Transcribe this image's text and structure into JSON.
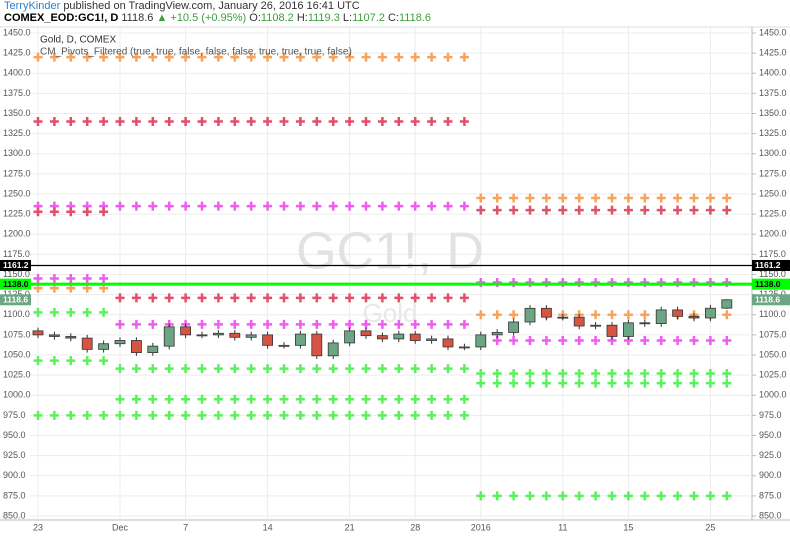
{
  "header": {
    "author": "TerryKinder",
    "published": "published on TradingView.com, January 26, 2016 16:41 UTC",
    "symbol": "COMEX_EOD:GC1!, D",
    "last": "1118.6",
    "change": "+10.5 (+0.95%)",
    "ohlc": [
      {
        "label": "O:",
        "value": "1108.2"
      },
      {
        "label": "H:",
        "value": "1119.3"
      },
      {
        "label": "L:",
        "value": "1107.2"
      },
      {
        "label": "C:",
        "value": "1118.6"
      }
    ]
  },
  "chart_data": {
    "type": "candlestick",
    "title": "Gold, D, COMEX",
    "subtitle": "CM_Pivots_Filtered (true, true, false, false, false, true, true, true, false)",
    "watermark": "GC1!, D",
    "watermark_subtitle": "Gold",
    "categories": [
      "23",
      null,
      null,
      null,
      null,
      "Dec",
      null,
      null,
      null,
      "7",
      null,
      null,
      null,
      null,
      "14",
      null,
      null,
      null,
      null,
      "21",
      null,
      null,
      null,
      "28",
      null,
      null,
      null,
      "2016",
      null,
      null,
      null,
      null,
      "11",
      null,
      null,
      null,
      "15",
      null,
      null,
      null,
      null,
      "25",
      null
    ],
    "open": [
      1080,
      1075,
      1073,
      1071,
      1057,
      1064,
      1068,
      1053,
      1061,
      1085,
      1075,
      1075,
      1077,
      1072,
      1075,
      1062,
      1062,
      1076,
      1049,
      1065,
      1080,
      1074,
      1070,
      1076,
      1068,
      1070,
      1060,
      1060,
      1075,
      1078,
      1091,
      1108,
      1097,
      1097,
      1086,
      1087,
      1073,
      1090,
      1089,
      1106,
      1098,
      1096,
      1108.2
    ],
    "high": [
      1084,
      1079,
      1077,
      1075,
      1068,
      1072,
      1072,
      1065,
      1089,
      1089,
      1079,
      1081,
      1081,
      1079,
      1079,
      1066,
      1080,
      1080,
      1069,
      1084,
      1084,
      1078,
      1080,
      1080,
      1074,
      1074,
      1064,
      1079,
      1082,
      1095,
      1112,
      1112,
      1101,
      1101,
      1091,
      1091,
      1094,
      1094,
      1110,
      1110,
      1102,
      1112.1,
      1119.3
    ],
    "low": [
      1071,
      1069,
      1067,
      1053,
      1053,
      1060,
      1049,
      1049,
      1057,
      1071,
      1071,
      1071,
      1068,
      1068,
      1058,
      1058,
      1058,
      1045,
      1045,
      1061,
      1070,
      1066,
      1066,
      1064,
      1064,
      1056,
      1056,
      1056,
      1071,
      1074,
      1087,
      1093,
      1093,
      1082,
      1082,
      1069,
      1069,
      1085,
      1085,
      1094,
      1092,
      1092,
      1107.2
    ],
    "close": [
      1075,
      1073,
      1071,
      1057,
      1064,
      1068,
      1053,
      1061,
      1085,
      1075,
      1075,
      1077,
      1072,
      1075,
      1062,
      1062,
      1076,
      1049,
      1065,
      1080,
      1074,
      1070,
      1076,
      1068,
      1070,
      1060,
      1060,
      1075,
      1078,
      1091,
      1108,
      1097,
      1097,
      1086,
      1087,
      1073,
      1090,
      1089,
      1106,
      1098,
      1096,
      1108.1,
      1118.6
    ],
    "up_color": "#6ba583",
    "down_color": "#d75442",
    "marker": "plus",
    "series": [
      {
        "color": "#f7a35c",
        "values": [
          1420,
          1420,
          1420,
          1420,
          1420,
          1420,
          1420,
          1420,
          1420,
          1420,
          1420,
          1420,
          1420,
          1420,
          1420,
          1420,
          1420,
          1420,
          1420,
          1420,
          1420,
          1420,
          1420,
          1420,
          1420,
          1420,
          1420,
          1245,
          1245,
          1245,
          1245,
          1245,
          1245,
          1245,
          1245,
          1245,
          1245,
          1245,
          1245,
          1245,
          1245,
          1245,
          1245
        ]
      },
      {
        "color": "#e0506b",
        "values": [
          1340,
          1340,
          1340,
          1340,
          1340,
          1340,
          1340,
          1340,
          1340,
          1340,
          1340,
          1340,
          1340,
          1340,
          1340,
          1340,
          1340,
          1340,
          1340,
          1340,
          1340,
          1340,
          1340,
          1340,
          1340,
          1340,
          1340,
          1230,
          1230,
          1230,
          1230,
          1230,
          1230,
          1230,
          1230,
          1230,
          1230,
          1230,
          1230,
          1230,
          1230,
          1230,
          1230
        ]
      },
      {
        "color": "#f05bf0",
        "values": [
          1235,
          1235,
          1235,
          1235,
          1235,
          1235,
          1235,
          1235,
          1235,
          1235,
          1235,
          1235,
          1235,
          1235,
          1235,
          1235,
          1235,
          1235,
          1235,
          1235,
          1235,
          1235,
          1235,
          1235,
          1235,
          1235,
          1235,
          1140,
          1140,
          1140,
          1140,
          1140,
          1140,
          1140,
          1140,
          1140,
          1140,
          1140,
          1140,
          1140,
          1140,
          1140,
          1140
        ]
      },
      {
        "color": "#e0506b",
        "values": [
          1228,
          1228,
          1228,
          1228,
          1228,
          1121,
          1121,
          1121,
          1121,
          1121,
          1121,
          1121,
          1121,
          1121,
          1121,
          1121,
          1121,
          1121,
          1121,
          1121,
          1121,
          1121,
          1121,
          1121,
          1121,
          1121,
          1121,
          null,
          null,
          null,
          null,
          null,
          null,
          null,
          null,
          null,
          null,
          null,
          null,
          null,
          null,
          null,
          null
        ]
      },
      {
        "color": "#f05bf0",
        "values": [
          1145,
          1145,
          1145,
          1145,
          1145,
          1088,
          1088,
          1088,
          1088,
          1088,
          1088,
          1088,
          1088,
          1088,
          1088,
          1088,
          1088,
          1088,
          1088,
          1088,
          1088,
          1088,
          1088,
          1088,
          1088,
          1088,
          1088,
          1068,
          1068,
          1068,
          1068,
          1068,
          1068,
          1068,
          1068,
          1068,
          1068,
          1068,
          1068,
          1068,
          1068,
          1068,
          1068
        ]
      },
      {
        "color": "#f7a35c",
        "values": [
          1133,
          1133,
          1133,
          1133,
          1133,
          null,
          null,
          null,
          null,
          null,
          null,
          null,
          null,
          null,
          null,
          null,
          null,
          null,
          null,
          null,
          null,
          null,
          null,
          null,
          null,
          null,
          null,
          1100,
          1100,
          1100,
          1100,
          1100,
          1100,
          1100,
          1100,
          1100,
          1100,
          1100,
          1100,
          1100,
          1100,
          1100,
          1100
        ]
      },
      {
        "color": "#5df05d",
        "values": [
          1103,
          1103,
          1103,
          1103,
          1103,
          1033,
          1033,
          1033,
          1033,
          1033,
          1033,
          1033,
          1033,
          1033,
          1033,
          1033,
          1033,
          1033,
          1033,
          1033,
          1033,
          1033,
          1033,
          1033,
          1033,
          1033,
          1033,
          1027,
          1027,
          1027,
          1027,
          1027,
          1027,
          1027,
          1027,
          1027,
          1027,
          1027,
          1027,
          1027,
          1027,
          1027,
          1027
        ]
      },
      {
        "color": "#5df05d",
        "values": [
          1043,
          1043,
          1043,
          1043,
          1043,
          995,
          995,
          995,
          995,
          995,
          995,
          995,
          995,
          995,
          995,
          995,
          995,
          995,
          995,
          995,
          995,
          995,
          995,
          995,
          995,
          995,
          995,
          1015,
          1015,
          1015,
          1015,
          1015,
          1015,
          1015,
          1015,
          1015,
          1015,
          1015,
          1015,
          1015,
          1015,
          1015,
          1015
        ]
      },
      {
        "color": "#5df05d",
        "values": [
          975,
          975,
          975,
          975,
          975,
          975,
          975,
          975,
          975,
          975,
          975,
          975,
          975,
          975,
          975,
          975,
          975,
          975,
          975,
          975,
          975,
          975,
          975,
          975,
          975,
          975,
          975,
          875,
          875,
          875,
          875,
          875,
          875,
          875,
          875,
          875,
          875,
          875,
          875,
          875,
          875,
          875,
          875
        ]
      }
    ],
    "price_lines": [
      {
        "value": 1161.2,
        "label": "1161.2",
        "color": "#000000",
        "text_color": "#ffffff",
        "line": true
      },
      {
        "value": 1138,
        "label": "1138.0",
        "color": "#00ff00",
        "text_color": "#000000",
        "line": true
      },
      {
        "value": 1118.6,
        "label": "1118.6",
        "color": "#6ba583",
        "text_color": "#ffffff",
        "line": false
      }
    ],
    "ylim": [
      850,
      1450
    ],
    "yticks": [
      {
        "value": 850,
        "label": "850.0"
      },
      {
        "value": 875,
        "label": "875.0"
      },
      {
        "value": 900,
        "label": "900.0"
      },
      {
        "value": 925,
        "label": "925.0"
      },
      {
        "value": 950,
        "label": "950.0"
      },
      {
        "value": 975,
        "label": "975.0"
      },
      {
        "value": 1000,
        "label": "1000.0"
      },
      {
        "value": 1025,
        "label": "1025.0"
      },
      {
        "value": 1050,
        "label": "1050.0"
      },
      {
        "value": 1075,
        "label": "1075.0"
      },
      {
        "value": 1100,
        "label": "1100.0"
      },
      {
        "value": 1125,
        "label": "1125.0"
      },
      {
        "value": 1150,
        "label": "1150.0"
      },
      {
        "value": 1175,
        "label": "1175.0"
      },
      {
        "value": 1200,
        "label": "1200.0"
      },
      {
        "value": 1225,
        "label": "1225.0"
      },
      {
        "value": 1250,
        "label": "1250.0"
      },
      {
        "value": 1275,
        "label": "1275.0"
      },
      {
        "value": 1300,
        "label": "1300.0"
      },
      {
        "value": 1325,
        "label": "1325.0"
      },
      {
        "value": 1350,
        "label": "1350.0"
      },
      {
        "value": 1375,
        "label": "1375.0"
      },
      {
        "value": 1400,
        "label": "1400.0"
      },
      {
        "value": 1425,
        "label": "1425.0"
      },
      {
        "value": 1450,
        "label": "1450.0"
      }
    ],
    "grid": true
  }
}
